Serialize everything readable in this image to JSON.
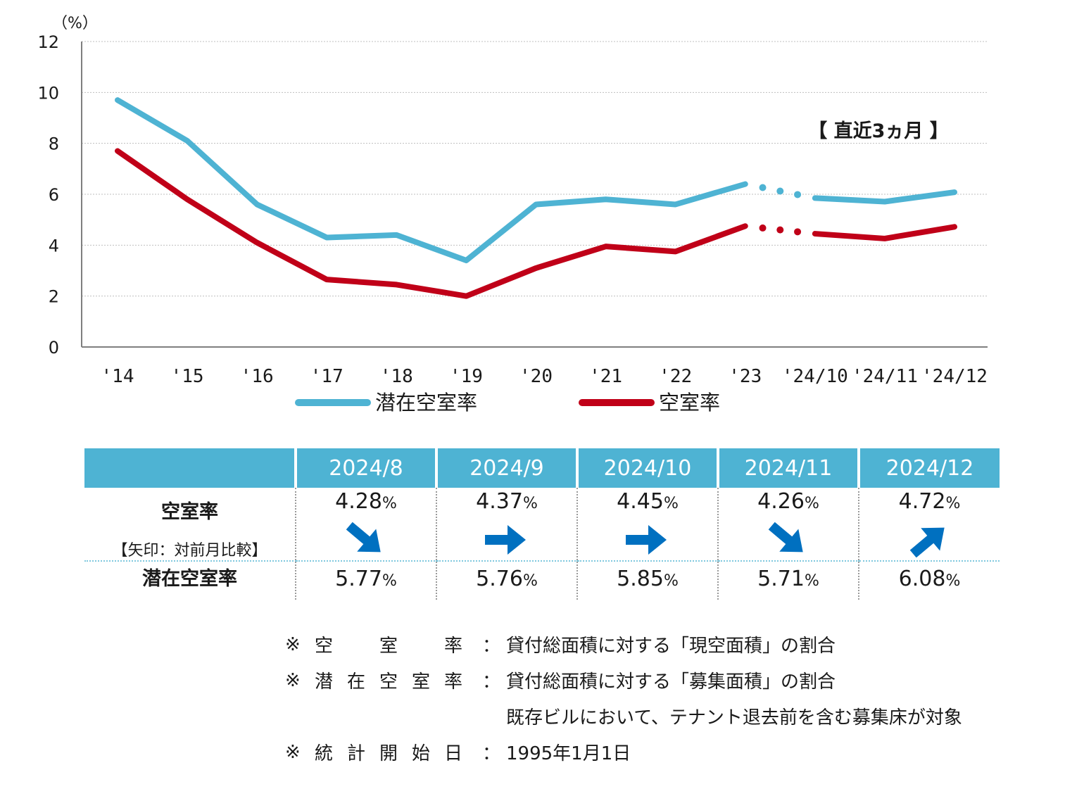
{
  "chart_data": {
    "type": "line",
    "unit_label": "（%）",
    "annotation": "【 直近3ヵ月 】",
    "categories": [
      "'14",
      "'15",
      "'16",
      "'17",
      "'18",
      "'19",
      "'20",
      "'21",
      "'22",
      "'23",
      "'24/10",
      "'24/11",
      "'24/12"
    ],
    "ylim": [
      0,
      12
    ],
    "yticks": [
      0,
      2,
      4,
      6,
      8,
      10,
      12
    ],
    "grid": true,
    "gap_after_index": 9,
    "series": [
      {
        "name": "潜在空室率",
        "color": "#4eb3d3",
        "values": [
          9.7,
          8.1,
          5.6,
          4.3,
          4.4,
          3.4,
          5.6,
          5.8,
          5.6,
          6.4,
          5.85,
          5.71,
          6.08
        ]
      },
      {
        "name": "空室率",
        "color": "#c00018",
        "values": [
          7.7,
          5.8,
          4.1,
          2.65,
          2.45,
          2.0,
          3.1,
          3.95,
          3.75,
          4.75,
          4.45,
          4.26,
          4.72
        ]
      }
    ]
  },
  "table": {
    "columns": [
      "2024/8",
      "2024/9",
      "2024/10",
      "2024/11",
      "2024/12"
    ],
    "vacancy_label": "空室率",
    "vacancy_sublabel": "【矢印：対前月比較】",
    "potential_label": "潜在空室率",
    "unit": "%",
    "arrow_color": "#0070c0",
    "vacancy": [
      "4.28",
      "4.37",
      "4.45",
      "4.26",
      "4.72"
    ],
    "arrows": [
      "down",
      "flat",
      "flat",
      "down",
      "up"
    ],
    "potential": [
      "5.77",
      "5.76",
      "5.85",
      "5.71",
      "6.08"
    ]
  },
  "notes": [
    {
      "mark": "※",
      "key": [
        "空",
        "室",
        "率"
      ],
      "colon": "：",
      "text": "貸付総面積に対する「現空面積」の割合"
    },
    {
      "mark": "※",
      "key": [
        "潜",
        "在",
        "空",
        "室",
        "率"
      ],
      "colon": "：",
      "text": "貸付総面積に対する「募集面積」の割合"
    },
    {
      "mark": "",
      "key": [],
      "colon": "",
      "text": "既存ビルにおいて、テナント退去前を含む募集床が対象"
    },
    {
      "mark": "※",
      "key": [
        "統",
        "計",
        "開",
        "始",
        "日"
      ],
      "colon": "：",
      "text": "1995年1月1日"
    }
  ]
}
